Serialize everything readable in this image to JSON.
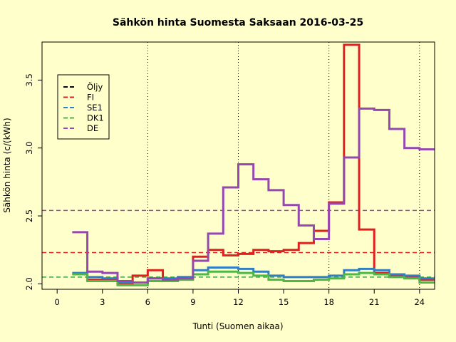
{
  "chart_data": {
    "type": "line",
    "title": "Sähkön hinta Suomesta Saksaan 2016-03-25",
    "xlabel": "Tunti (Suomen aikaa)",
    "ylabel": "Sähkön hinta (c/(kWh)",
    "xlim": [
      -1,
      25
    ],
    "ylim": [
      1.96,
      3.78
    ],
    "xticks": [
      0,
      3,
      6,
      9,
      12,
      15,
      18,
      21,
      24
    ],
    "yticks": [
      2.0,
      2.5,
      3.0,
      3.5
    ],
    "vlines": [
      6,
      12,
      18,
      24
    ],
    "legend_position": "top-left",
    "series": [
      {
        "name": "Öljy",
        "color": "#000000",
        "style": "dashed",
        "hline": null
      },
      {
        "name": "FI",
        "color": "#DF2020",
        "style": "solid",
        "hline": 2.23,
        "x": [
          1,
          2,
          3,
          4,
          5,
          6,
          7,
          8,
          9,
          10,
          11,
          12,
          13,
          14,
          15,
          16,
          17,
          18,
          19,
          20,
          21,
          22,
          23,
          24,
          25
        ],
        "y": [
          2.07,
          2.03,
          2.03,
          2.0,
          2.06,
          2.1,
          2.03,
          2.05,
          2.2,
          2.25,
          2.21,
          2.22,
          2.25,
          2.24,
          2.25,
          2.3,
          2.39,
          2.6,
          3.76,
          2.4,
          2.08,
          2.06,
          2.05,
          2.03,
          2.03
        ]
      },
      {
        "name": "SE1",
        "color": "#2F7FC2",
        "style": "solid",
        "hline": 2.05,
        "x": [
          1,
          2,
          3,
          4,
          5,
          6,
          7,
          8,
          9,
          10,
          11,
          12,
          13,
          14,
          15,
          16,
          17,
          18,
          19,
          20,
          21,
          22,
          23,
          24,
          25
        ],
        "y": [
          2.08,
          2.05,
          2.04,
          2.01,
          2.01,
          2.04,
          2.04,
          2.05,
          2.1,
          2.12,
          2.12,
          2.11,
          2.09,
          2.06,
          2.05,
          2.05,
          2.05,
          2.06,
          2.1,
          2.11,
          2.1,
          2.07,
          2.06,
          2.04,
          2.04
        ]
      },
      {
        "name": "DK1",
        "color": "#4DB845",
        "style": "solid",
        "hline": 2.05,
        "x": [
          1,
          2,
          3,
          4,
          5,
          6,
          7,
          8,
          9,
          10,
          11,
          12,
          13,
          14,
          15,
          16,
          17,
          18,
          19,
          20,
          21,
          22,
          23,
          24,
          25
        ],
        "y": [
          2.07,
          2.02,
          2.02,
          1.99,
          1.99,
          2.02,
          2.02,
          2.03,
          2.07,
          2.09,
          2.09,
          2.08,
          2.06,
          2.03,
          2.02,
          2.02,
          2.03,
          2.04,
          2.07,
          2.08,
          2.07,
          2.05,
          2.04,
          2.01,
          2.01
        ]
      },
      {
        "name": "DE",
        "color": "#9448B0",
        "style": "solid",
        "hline": 2.54,
        "x": [
          1,
          2,
          3,
          4,
          5,
          6,
          7,
          8,
          9,
          10,
          11,
          12,
          13,
          14,
          15,
          16,
          17,
          18,
          19,
          20,
          21,
          22,
          23,
          24,
          25
        ],
        "y": [
          2.38,
          2.09,
          2.08,
          2.02,
          2.01,
          2.04,
          2.03,
          2.04,
          2.17,
          2.37,
          2.71,
          2.88,
          2.77,
          2.69,
          2.58,
          2.43,
          2.33,
          2.59,
          2.93,
          3.29,
          3.28,
          3.14,
          3.0,
          2.99,
          2.99
        ]
      }
    ]
  }
}
